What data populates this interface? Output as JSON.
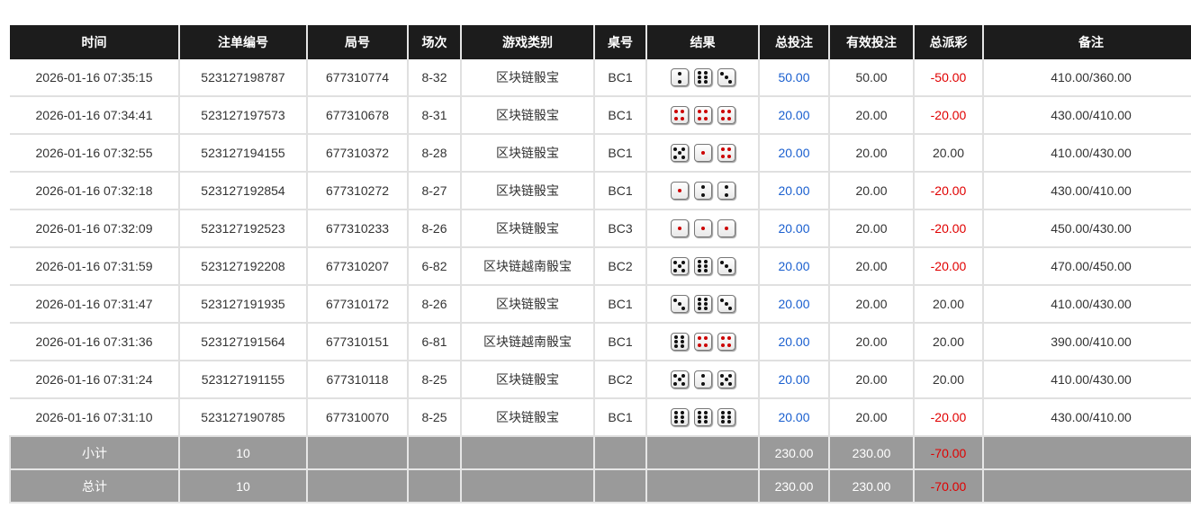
{
  "headers": [
    "时间",
    "注单编号",
    "局号",
    "场次",
    "游戏类别",
    "桌号",
    "结果",
    "总投注",
    "有效投注",
    "总派彩",
    "备注"
  ],
  "rows": [
    {
      "time": "2026-01-16 07:35:15",
      "bet_id": "523127198787",
      "round": "677310774",
      "session": "8-32",
      "game": "区块链骰宝",
      "table": "BC1",
      "dice": [
        2,
        6,
        3
      ],
      "total_bet": "50.00",
      "valid_bet": "50.00",
      "payout": "-50.00",
      "note": "410.00/360.00"
    },
    {
      "time": "2026-01-16 07:34:41",
      "bet_id": "523127197573",
      "round": "677310678",
      "session": "8-31",
      "game": "区块链骰宝",
      "table": "BC1",
      "dice": [
        4,
        4,
        4
      ],
      "total_bet": "20.00",
      "valid_bet": "20.00",
      "payout": "-20.00",
      "note": "430.00/410.00"
    },
    {
      "time": "2026-01-16 07:32:55",
      "bet_id": "523127194155",
      "round": "677310372",
      "session": "8-28",
      "game": "区块链骰宝",
      "table": "BC1",
      "dice": [
        5,
        1,
        4
      ],
      "total_bet": "20.00",
      "valid_bet": "20.00",
      "payout": "20.00",
      "note": "410.00/430.00"
    },
    {
      "time": "2026-01-16 07:32:18",
      "bet_id": "523127192854",
      "round": "677310272",
      "session": "8-27",
      "game": "区块链骰宝",
      "table": "BC1",
      "dice": [
        1,
        2,
        2
      ],
      "total_bet": "20.00",
      "valid_bet": "20.00",
      "payout": "-20.00",
      "note": "430.00/410.00"
    },
    {
      "time": "2026-01-16 07:32:09",
      "bet_id": "523127192523",
      "round": "677310233",
      "session": "8-26",
      "game": "区块链骰宝",
      "table": "BC3",
      "dice": [
        1,
        1,
        1
      ],
      "total_bet": "20.00",
      "valid_bet": "20.00",
      "payout": "-20.00",
      "note": "450.00/430.00"
    },
    {
      "time": "2026-01-16 07:31:59",
      "bet_id": "523127192208",
      "round": "677310207",
      "session": "6-82",
      "game": "区块链越南骰宝",
      "table": "BC2",
      "dice": [
        5,
        6,
        3
      ],
      "total_bet": "20.00",
      "valid_bet": "20.00",
      "payout": "-20.00",
      "note": "470.00/450.00"
    },
    {
      "time": "2026-01-16 07:31:47",
      "bet_id": "523127191935",
      "round": "677310172",
      "session": "8-26",
      "game": "区块链骰宝",
      "table": "BC1",
      "dice": [
        3,
        6,
        3
      ],
      "total_bet": "20.00",
      "valid_bet": "20.00",
      "payout": "20.00",
      "note": "410.00/430.00"
    },
    {
      "time": "2026-01-16 07:31:36",
      "bet_id": "523127191564",
      "round": "677310151",
      "session": "6-81",
      "game": "区块链越南骰宝",
      "table": "BC1",
      "dice": [
        6,
        4,
        4
      ],
      "total_bet": "20.00",
      "valid_bet": "20.00",
      "payout": "20.00",
      "note": "390.00/410.00"
    },
    {
      "time": "2026-01-16 07:31:24",
      "bet_id": "523127191155",
      "round": "677310118",
      "session": "8-25",
      "game": "区块链骰宝",
      "table": "BC2",
      "dice": [
        5,
        2,
        5
      ],
      "total_bet": "20.00",
      "valid_bet": "20.00",
      "payout": "20.00",
      "note": "410.00/430.00"
    },
    {
      "time": "2026-01-16 07:31:10",
      "bet_id": "523127190785",
      "round": "677310070",
      "session": "8-25",
      "game": "区块链骰宝",
      "table": "BC1",
      "dice": [
        6,
        6,
        6
      ],
      "total_bet": "20.00",
      "valid_bet": "20.00",
      "payout": "-20.00",
      "note": "430.00/410.00"
    }
  ],
  "subtotal": {
    "label": "小计",
    "count": "10",
    "total_bet": "230.00",
    "valid_bet": "230.00",
    "payout": "-70.00"
  },
  "total": {
    "label": "总计",
    "count": "10",
    "total_bet": "230.00",
    "valid_bet": "230.00",
    "payout": "-70.00"
  },
  "colors": {
    "header": "#1c1c1c",
    "bet": "#1a5fcf",
    "loss": "#e00000",
    "summary": "#9a9a9a",
    "red_pip": "#cc0000"
  }
}
